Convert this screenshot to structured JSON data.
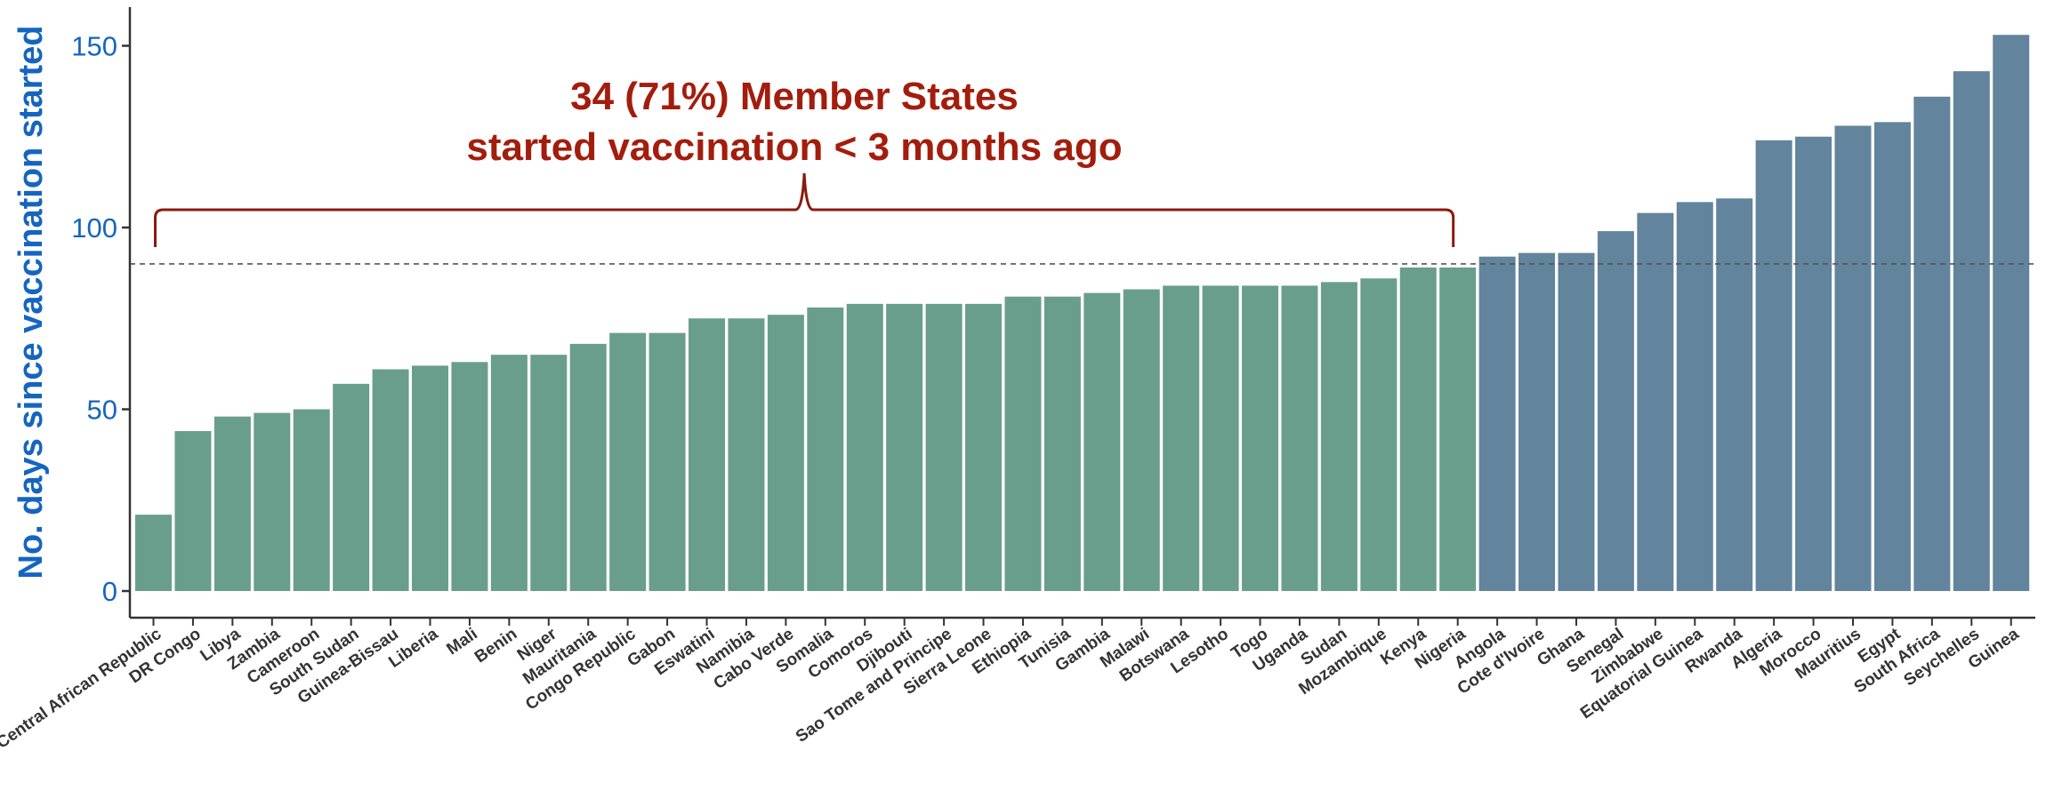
{
  "chart_data": {
    "type": "bar",
    "ylabel": "No. days since vaccination started",
    "xlabel": "",
    "ylim": [
      0,
      160
    ],
    "yticks": [
      0,
      50,
      100,
      150
    ],
    "grid": false,
    "threshold": 90,
    "categories": [
      "Central African Republic",
      "DR Congo",
      "Libya",
      "Zambia",
      "Cameroon",
      "South Sudan",
      "Guinea-Bissau",
      "Liberia",
      "Mali",
      "Benin",
      "Niger",
      "Mauritania",
      "Congo Republic",
      "Gabon",
      "Eswatini",
      "Namibia",
      "Cabo Verde",
      "Somalia",
      "Comoros",
      "Djibouti",
      "Sao Tome and Principe",
      "Sierra Leone",
      "Ethiopia",
      "Tunisia",
      "Gambia",
      "Malawi",
      "Botswana",
      "Lesotho",
      "Togo",
      "Uganda",
      "Sudan",
      "Mozambique",
      "Kenya",
      "Nigeria",
      "Angola",
      "Cote d'Ivoire",
      "Ghana",
      "Senegal",
      "Zimbabwe",
      "Equatorial Guinea",
      "Rwanda",
      "Algeria",
      "Morocco",
      "Mauritius",
      "Egypt",
      "South Africa",
      "Seychelles",
      "Guinea"
    ],
    "values": [
      21,
      44,
      48,
      49,
      50,
      57,
      61,
      62,
      63,
      65,
      65,
      68,
      71,
      71,
      75,
      75,
      76,
      78,
      79,
      79,
      79,
      79,
      81,
      81,
      82,
      83,
      84,
      84,
      84,
      84,
      85,
      86,
      89,
      89,
      92,
      93,
      93,
      99,
      104,
      107,
      108,
      124,
      125,
      128,
      129,
      136,
      143,
      153
    ],
    "annotation": {
      "line1": "34 (71%) Member States",
      "line2": "started vaccination < 3 months ago",
      "count": 34
    },
    "colors": {
      "under": "#6a9e8c",
      "over": "#62849c",
      "axis_label": "#1565c0",
      "tick_label": "#1565c0",
      "annotation": "#a31d0d",
      "brace": "#8b1a0f",
      "threshold": "#555555",
      "axis": "#333333"
    }
  }
}
